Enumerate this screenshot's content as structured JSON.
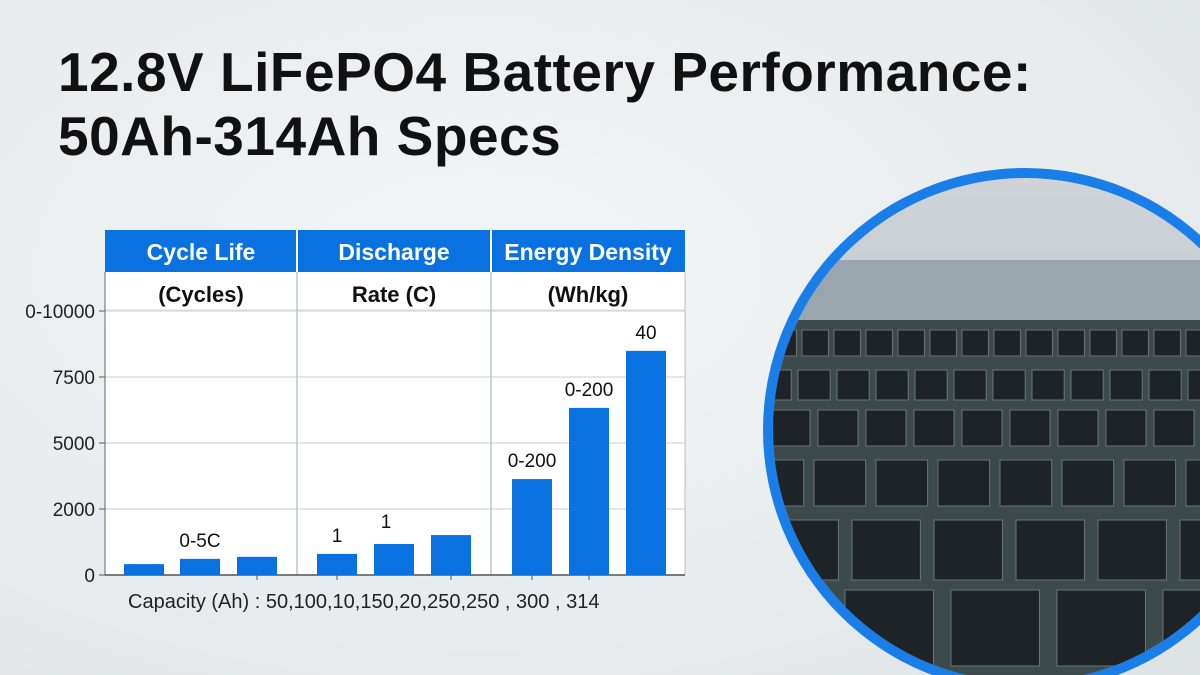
{
  "title_line1": "12.8V LiFePO4 Battery Performance:",
  "title_line2": "50Ah-314Ah Specs",
  "chart_data": {
    "type": "bar",
    "headers": [
      {
        "top": "Cycle Life",
        "sub": "(Cycles)"
      },
      {
        "top": "Discharge",
        "sub": "Rate (C)"
      },
      {
        "top": "Energy Density",
        "sub": "(Wh/kg)"
      }
    ],
    "y_ticks": [
      "0",
      "2000",
      "5000",
      "7500",
      "0-10000"
    ],
    "y_tick_values": [
      0,
      2000,
      5000,
      7500,
      10000
    ],
    "ylim": [
      0,
      10000
    ],
    "xlabel": "Capacity (Ah) : 50,100,10,150,20,250,250 , 300 , 314",
    "values": [
      330,
      490,
      550,
      640,
      940,
      1210,
      3360,
      6330,
      8490
    ],
    "bar_labels": [
      "",
      "0-5C",
      "",
      "1",
      "1",
      "",
      "0-200",
      "0-200",
      "40"
    ],
    "grid": true,
    "bar_color": "#0a72e0",
    "header_color": "#0a72e0"
  },
  "photo": {
    "description_icon": "warehouse-photo",
    "ring_color": "#1a7ee8"
  }
}
